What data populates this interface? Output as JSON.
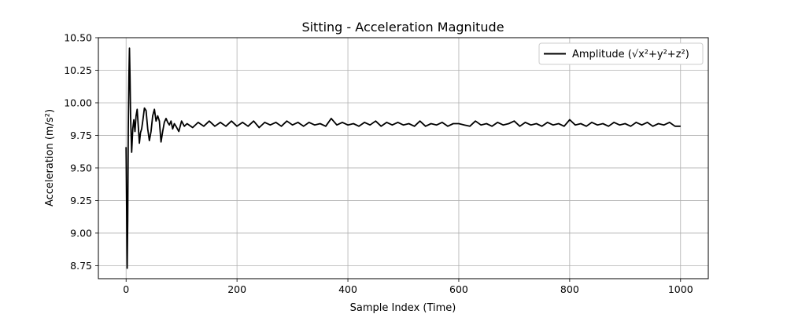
{
  "chart_data": {
    "type": "line",
    "title": "Sitting - Acceleration Magnitude",
    "xlabel": "Sample Index (Time)",
    "ylabel": "Acceleration (m/s²)",
    "xlim": [
      -50,
      1050
    ],
    "ylim": [
      8.65,
      10.5
    ],
    "x_ticks": [
      0,
      200,
      400,
      600,
      800,
      1000
    ],
    "y_ticks": [
      8.75,
      9.0,
      9.25,
      9.5,
      9.75,
      10.0,
      10.25,
      10.5
    ],
    "x_tick_labels": [
      "0",
      "200",
      "400",
      "600",
      "800",
      "1000"
    ],
    "y_tick_labels": [
      "8.75",
      "9.00",
      "9.25",
      "9.50",
      "9.75",
      "10.00",
      "10.25",
      "10.50"
    ],
    "grid": true,
    "legend_position": "top-right",
    "series": [
      {
        "name": "Amplitude (√x²+y²+z²)",
        "color": "#000000",
        "x": [
          0,
          1,
          2,
          3,
          4,
          5,
          6,
          7,
          8,
          10,
          12,
          14,
          16,
          18,
          20,
          22,
          24,
          26,
          28,
          30,
          33,
          36,
          39,
          42,
          45,
          48,
          51,
          54,
          57,
          60,
          63,
          66,
          69,
          72,
          75,
          78,
          81,
          84,
          87,
          90,
          95,
          100,
          105,
          110,
          120,
          130,
          140,
          150,
          160,
          170,
          180,
          190,
          200,
          210,
          220,
          230,
          240,
          250,
          260,
          270,
          280,
          290,
          300,
          310,
          320,
          330,
          340,
          350,
          360,
          370,
          380,
          390,
          400,
          410,
          420,
          430,
          440,
          450,
          460,
          470,
          480,
          490,
          500,
          510,
          520,
          530,
          540,
          550,
          560,
          570,
          580,
          590,
          600,
          610,
          620,
          630,
          640,
          650,
          660,
          670,
          680,
          690,
          700,
          710,
          720,
          730,
          740,
          750,
          760,
          770,
          780,
          790,
          800,
          810,
          820,
          830,
          840,
          850,
          860,
          870,
          880,
          890,
          900,
          910,
          920,
          930,
          940,
          950,
          960,
          970,
          980,
          990,
          1000
        ],
        "values": [
          9.66,
          9.2,
          8.73,
          9.1,
          9.8,
          10.2,
          10.42,
          10.2,
          9.9,
          9.62,
          9.8,
          9.87,
          9.78,
          9.9,
          9.95,
          9.82,
          9.69,
          9.77,
          9.8,
          9.86,
          9.96,
          9.94,
          9.8,
          9.71,
          9.78,
          9.9,
          9.95,
          9.86,
          9.9,
          9.86,
          9.7,
          9.78,
          9.85,
          9.88,
          9.85,
          9.83,
          9.86,
          9.8,
          9.84,
          9.82,
          9.78,
          9.86,
          9.82,
          9.84,
          9.81,
          9.85,
          9.82,
          9.86,
          9.82,
          9.85,
          9.82,
          9.86,
          9.82,
          9.85,
          9.82,
          9.86,
          9.81,
          9.85,
          9.83,
          9.85,
          9.82,
          9.86,
          9.83,
          9.85,
          9.82,
          9.85,
          9.83,
          9.84,
          9.82,
          9.88,
          9.83,
          9.85,
          9.83,
          9.84,
          9.82,
          9.85,
          9.83,
          9.86,
          9.82,
          9.85,
          9.83,
          9.85,
          9.83,
          9.84,
          9.82,
          9.86,
          9.82,
          9.84,
          9.83,
          9.85,
          9.82,
          9.84,
          9.84,
          9.83,
          9.82,
          9.86,
          9.83,
          9.84,
          9.82,
          9.85,
          9.83,
          9.84,
          9.86,
          9.82,
          9.85,
          9.83,
          9.84,
          9.82,
          9.85,
          9.83,
          9.84,
          9.82,
          9.87,
          9.83,
          9.84,
          9.82,
          9.85,
          9.83,
          9.84,
          9.82,
          9.85,
          9.83,
          9.84,
          9.82,
          9.85,
          9.83,
          9.85,
          9.82,
          9.84,
          9.83,
          9.85,
          9.82,
          9.82
        ]
      }
    ]
  }
}
